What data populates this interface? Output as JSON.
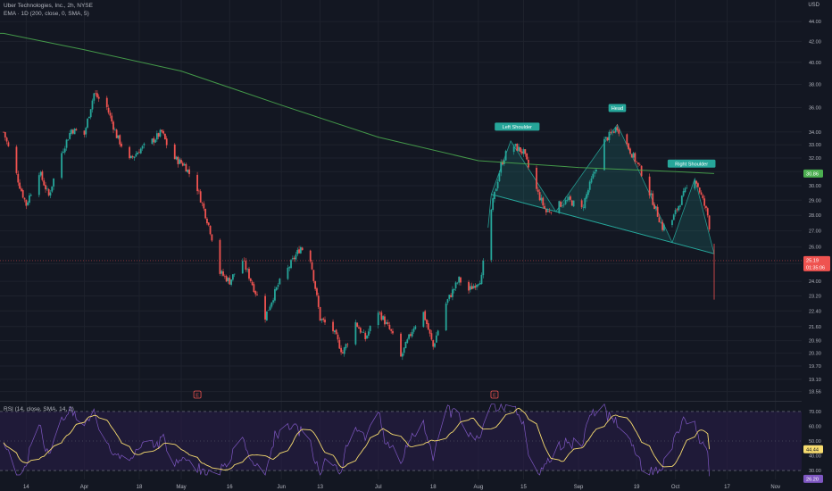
{
  "header": {
    "title": "Uber Technologies, Inc., 2h, NYSE",
    "indicator": "EMA · 1D (200, close, 0, SMA, 5)"
  },
  "rsi_header": "RSI (14, close, SMA, 14, 2)",
  "currency": "USD",
  "price_axis_ticks": [
    "44.00",
    "42.00",
    "40.00",
    "38.00",
    "36.00",
    "34.00",
    "33.00",
    "32.00",
    "31.00",
    "30.00",
    "29.00",
    "28.00",
    "27.00",
    "26.00",
    "25.00",
    "24.00",
    "23.20",
    "22.40",
    "21.60",
    "20.90",
    "20.30",
    "19.70",
    "19.10",
    "18.56"
  ],
  "rsi_axis_ticks": [
    "70.00",
    "60.00",
    "50.00",
    "40.00",
    "30.00"
  ],
  "time_axis_ticks": [
    "14",
    "Apr",
    "18",
    "May",
    "16",
    "Jun",
    "13",
    "Jul",
    "18",
    "Aug",
    "15",
    "Sep",
    "19",
    "Oct",
    "17",
    "Nov"
  ],
  "markers": {
    "ema_value": "30.86",
    "price_value": "25.19",
    "countdown": "01:35:06",
    "rsi_signal": "44.44",
    "rsi_value": "26.20",
    "earnings_1": "E",
    "earnings_2": "E"
  },
  "pattern_labels": {
    "left": "Left Shoulder",
    "head": "Head",
    "right": "Right Shoulder"
  },
  "colors": {
    "background": "#131722",
    "up": "#26a69a",
    "down": "#ef5350",
    "ema": "#4caf50",
    "pattern_fill": "#26a69a",
    "rsi_line": "#7e57c2",
    "rsi_signal": "#f7dc6f",
    "rsi_band": "#2a1e4a"
  },
  "chart_data": {
    "type": "candlestick",
    "title": "Uber Technologies, Inc., 2h, NYSE",
    "ylabel": "USD",
    "y_scale": "log",
    "ylim": [
      18.56,
      45.0
    ],
    "x_ticks": [
      "14",
      "Apr",
      "18",
      "May",
      "16",
      "Jun",
      "13",
      "Jul",
      "18",
      "Aug",
      "15",
      "Sep",
      "19",
      "Oct",
      "17",
      "Nov"
    ],
    "price_path": [
      [
        "Mar 07",
        34.0
      ],
      [
        "Mar 12",
        30.0
      ],
      [
        "Mar 14",
        28.7
      ],
      [
        "Mar 18",
        31.0
      ],
      [
        "Mar 21",
        29.3
      ],
      [
        "Mar 25",
        32.4
      ],
      [
        "Mar 28",
        34.2
      ],
      [
        "Apr 01",
        33.8
      ],
      [
        "Apr 04",
        37.2
      ],
      [
        "Apr 08",
        36.0
      ],
      [
        "Apr 11",
        33.7
      ],
      [
        "Apr 15",
        31.8
      ],
      [
        "Apr 18",
        32.6
      ],
      [
        "Apr 22",
        33.3
      ],
      [
        "Apr 25",
        34.0
      ],
      [
        "Apr 28",
        32.1
      ],
      [
        "May 02",
        31.5
      ],
      [
        "May 06",
        29.8
      ],
      [
        "May 10",
        27.0
      ],
      [
        "May 13",
        24.5
      ],
      [
        "May 16",
        24.0
      ],
      [
        "May 20",
        25.2
      ],
      [
        "May 24",
        23.4
      ],
      [
        "May 27",
        22.1
      ],
      [
        "May 31",
        23.8
      ],
      [
        "Jun 03",
        24.7
      ],
      [
        "Jun 07",
        26.0
      ],
      [
        "Jun 10",
        25.3
      ],
      [
        "Jun 13",
        22.0
      ],
      [
        "Jun 17",
        21.4
      ],
      [
        "Jun 20",
        20.3
      ],
      [
        "Jun 24",
        21.8
      ],
      [
        "Jun 27",
        21.0
      ],
      [
        "Jul 01",
        22.4
      ],
      [
        "Jul 05",
        21.3
      ],
      [
        "Jul 08",
        20.1
      ],
      [
        "Jul 12",
        21.6
      ],
      [
        "Jul 15",
        22.3
      ],
      [
        "Jul 18",
        20.6
      ],
      [
        "Jul 22",
        22.8
      ],
      [
        "Jul 26",
        24.1
      ],
      [
        "Jul 29",
        23.5
      ],
      [
        "Aug 02",
        24.2
      ],
      [
        "Aug 04",
        27.3
      ],
      [
        "Aug 08",
        31.5
      ],
      [
        "Aug 11",
        33.1
      ],
      [
        "Aug 15",
        32.4
      ],
      [
        "Aug 18",
        30.2
      ],
      [
        "Aug 22",
        28.2
      ],
      [
        "Aug 25",
        28.6
      ],
      [
        "Aug 29",
        29.0
      ],
      [
        "Sep 02",
        28.4
      ],
      [
        "Sep 06",
        31.0
      ],
      [
        "Sep 09",
        33.3
      ],
      [
        "Sep 13",
        34.4
      ],
      [
        "Sep 16",
        33.0
      ],
      [
        "Sep 20",
        31.2
      ],
      [
        "Sep 23",
        29.5
      ],
      [
        "Sep 27",
        27.2
      ],
      [
        "Sep 30",
        27.7
      ],
      [
        "Oct 04",
        29.6
      ],
      [
        "Oct 07",
        30.6
      ],
      [
        "Oct 11",
        28.0
      ],
      [
        "Oct 13",
        25.19
      ]
    ],
    "ema_200": [
      [
        "Mar 07",
        42.8
      ],
      [
        "Apr 01",
        41.2
      ],
      [
        "May 01",
        39.2
      ],
      [
        "Jun 01",
        36.2
      ],
      [
        "Jul 01",
        33.6
      ],
      [
        "Aug 01",
        31.8
      ],
      [
        "Sep 01",
        31.3
      ],
      [
        "Oct 01",
        31.0
      ],
      [
        "Oct 13",
        30.86
      ]
    ],
    "head_and_shoulders": {
      "left_shoulder": [
        "Aug 11",
        33.3
      ],
      "head": [
        "Sep 13",
        34.6
      ],
      "right_shoulder": [
        "Oct 07",
        30.5
      ],
      "neckline": [
        [
          "Aug 05",
          29.4
        ],
        [
          "Oct 13",
          25.6
        ]
      ]
    },
    "rsi": {
      "ylim": [
        26,
        76
      ],
      "overbought": 70,
      "oversold": 30,
      "rsi_last": 26.2,
      "signal_last": 44.44
    },
    "legend": "top-left",
    "grid": true
  }
}
